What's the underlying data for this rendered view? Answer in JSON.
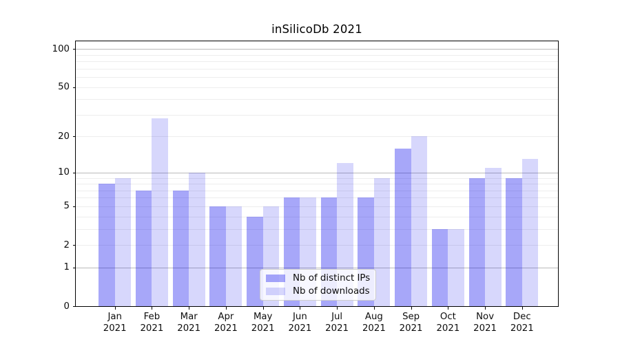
{
  "figure": {
    "background": "#ffffff",
    "frame_color": "#000000"
  },
  "chart_data": {
    "type": "bar",
    "title": "inSilicoDb 2021",
    "categories": [
      "Jan",
      "Feb",
      "Mar",
      "Apr",
      "May",
      "Jun",
      "Jul",
      "Aug",
      "Sep",
      "Oct",
      "Nov",
      "Dec"
    ],
    "x_year_label": "2021",
    "series": [
      {
        "name": "Nb of distinct IPs",
        "color": "rgba(0,0,238,0.345)",
        "values": [
          8,
          7,
          7,
          5,
          4,
          6,
          6,
          6,
          16,
          3,
          9,
          9
        ]
      },
      {
        "name": "Nb of downloads",
        "color": "rgba(0,0,238,0.155)",
        "values": [
          9,
          28,
          10,
          5,
          5,
          6,
          12,
          9,
          20,
          3,
          11,
          13
        ]
      }
    ],
    "yscale": "log1p",
    "ylim": [
      0,
      115
    ],
    "yticks": [
      0,
      1,
      2,
      5,
      10,
      20,
      50,
      100
    ],
    "gridlines": {
      "major": [
        1,
        10,
        100
      ],
      "minor": [
        2,
        3,
        4,
        5,
        6,
        7,
        8,
        9,
        20,
        30,
        40,
        50,
        60,
        70,
        80,
        90
      ],
      "major_color": "#b9b9b9",
      "minor_color": "#ededed"
    },
    "legend": {
      "position": "lower center",
      "entries": [
        "Nb of distinct IPs",
        "Nb of downloads"
      ]
    }
  }
}
